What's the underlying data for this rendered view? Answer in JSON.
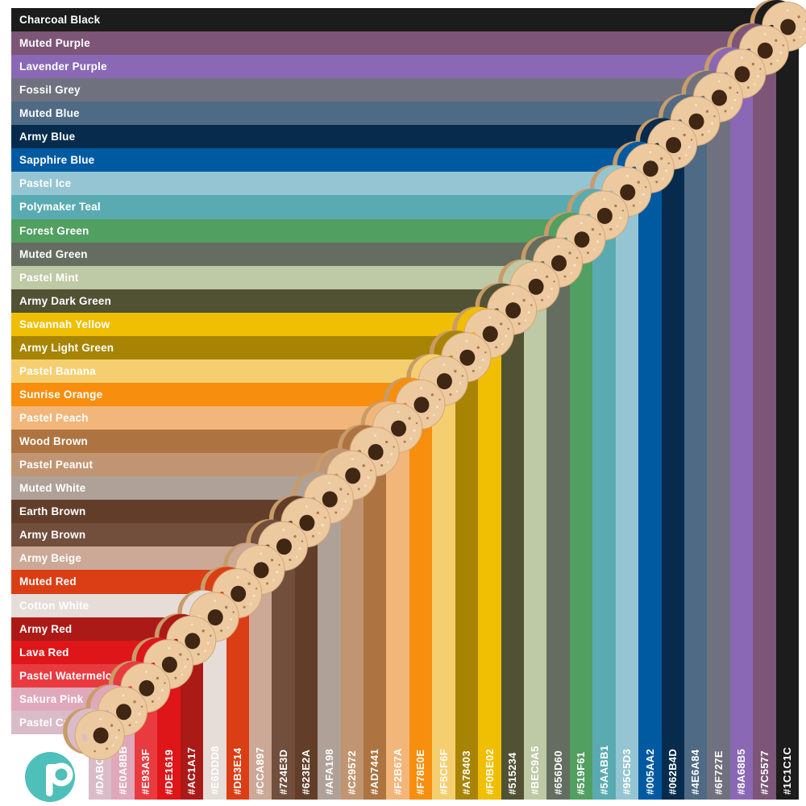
{
  "chart_data": {
    "type": "table",
    "columns": [
      "name",
      "hex"
    ],
    "rows": [
      {
        "name": "Charcoal Black",
        "hex": "#1C1C1C"
      },
      {
        "name": "Muted Purple",
        "hex": "#7C5577"
      },
      {
        "name": "Lavender Purple",
        "hex": "#8A68B5"
      },
      {
        "name": "Fossil Grey",
        "hex": "#6F727E"
      },
      {
        "name": "Muted Blue",
        "hex": "#4E6A84"
      },
      {
        "name": "Army Blue",
        "hex": "#062B4D"
      },
      {
        "name": "Sapphire Blue",
        "hex": "#005AA2"
      },
      {
        "name": "Pastel Ice",
        "hex": "#95C5D3"
      },
      {
        "name": "Polymaker Teal",
        "hex": "#5AABB1"
      },
      {
        "name": "Forest Green",
        "hex": "#519F61"
      },
      {
        "name": "Muted Green",
        "hex": "#656D60"
      },
      {
        "name": "Pastel Mint",
        "hex": "#BEC9A5"
      },
      {
        "name": "Army Dark Green",
        "hex": "#515234"
      },
      {
        "name": "Savannah Yellow",
        "hex": "#F0BE02"
      },
      {
        "name": "Army Light Green",
        "hex": "#A78403"
      },
      {
        "name": "Pastel Banana",
        "hex": "#F5CF6F"
      },
      {
        "name": "Sunrise Orange",
        "hex": "#F78E0E"
      },
      {
        "name": "Pastel Peach",
        "hex": "#F2B67A"
      },
      {
        "name": "Wood Brown",
        "hex": "#AD7441"
      },
      {
        "name": "Pastel Peanut",
        "hex": "#C29572"
      },
      {
        "name": "Muted White",
        "hex": "#AFA198"
      },
      {
        "name": "Earth Brown",
        "hex": "#623E2A"
      },
      {
        "name": "Army Brown",
        "hex": "#724E3D"
      },
      {
        "name": "Army Beige",
        "hex": "#CCA897"
      },
      {
        "name": "Muted Red",
        "hex": "#DB3E14"
      },
      {
        "name": "Cotton White",
        "hex": "#E6DDD8"
      },
      {
        "name": "Army Red",
        "hex": "#AC1A17"
      },
      {
        "name": "Lava Red",
        "hex": "#DE1619"
      },
      {
        "name": "Pastel Watermelon",
        "hex": "#E93A3F"
      },
      {
        "name": "Sakura Pink",
        "hex": "#E0A8BB"
      },
      {
        "name": "Pastel Candy",
        "hex": "#DABCC8"
      }
    ],
    "layout": {
      "rows": "color name bands, top to bottom",
      "columns": "hex code bands left to right in reverse row order",
      "diagonal": "filament spool at each name/hex intersection",
      "label_text_color": "#FFFFFF"
    }
  },
  "spool": {
    "face": "#EDC9A0",
    "edge": "#D2A878",
    "back_flange": "#C89C68",
    "hub_hole": "#3F2713",
    "speck_dark": "#A97C4F",
    "speck_light": "#F8E7CB"
  },
  "logo": {
    "glyph": "p",
    "color": "#4FBFBA"
  },
  "background": "#FFFFFF"
}
